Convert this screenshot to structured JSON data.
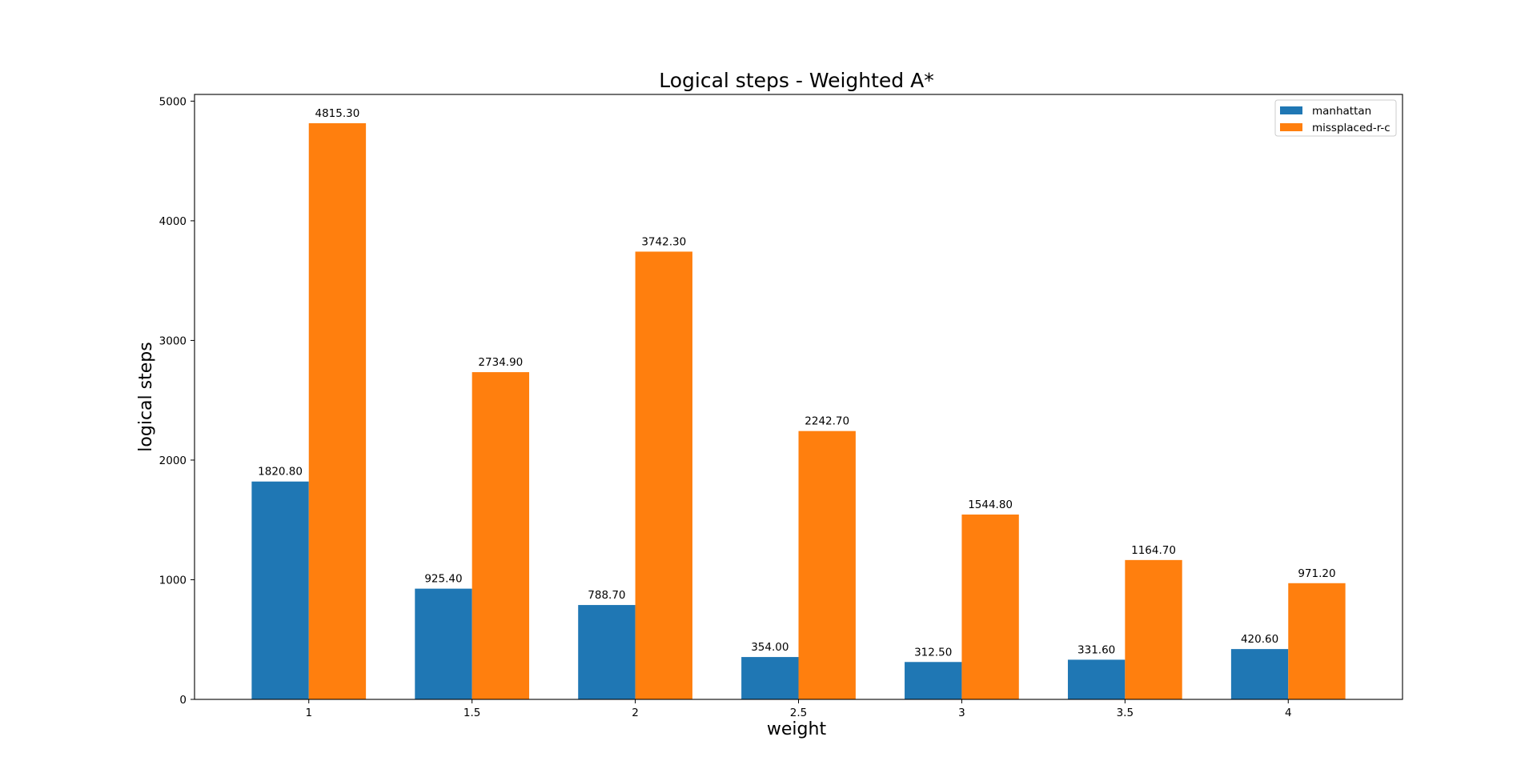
{
  "colors": {
    "manhattan": "#1f77b4",
    "missplaced": "#ff7f0e",
    "axis": "#000000",
    "legend_border": "#cccccc"
  },
  "chart_data": {
    "type": "bar",
    "title": "Logical steps - Weighted A*",
    "xlabel": "weight",
    "ylabel": "logical steps",
    "categories": [
      "1",
      "1.5",
      "2",
      "2.5",
      "3",
      "3.5",
      "4"
    ],
    "series": [
      {
        "name": "manhattan",
        "values": [
          1820.8,
          925.4,
          788.7,
          354.0,
          312.5,
          331.6,
          420.6
        ],
        "labels": [
          "1820.80",
          "925.40",
          "788.70",
          "354.00",
          "312.50",
          "331.60",
          "420.60"
        ]
      },
      {
        "name": "missplaced-r-c",
        "values": [
          4815.3,
          2734.9,
          3742.3,
          2242.7,
          1544.8,
          1164.7,
          971.2
        ],
        "labels": [
          "4815.30",
          "2734.90",
          "3742.30",
          "2242.70",
          "1544.80",
          "1164.70",
          "971.20"
        ]
      }
    ],
    "ylim": [
      0,
      5056.1
    ],
    "yticks": [
      "0",
      "1000",
      "2000",
      "3000",
      "4000",
      "5000"
    ],
    "grid": false,
    "legend_position": "top-right"
  }
}
